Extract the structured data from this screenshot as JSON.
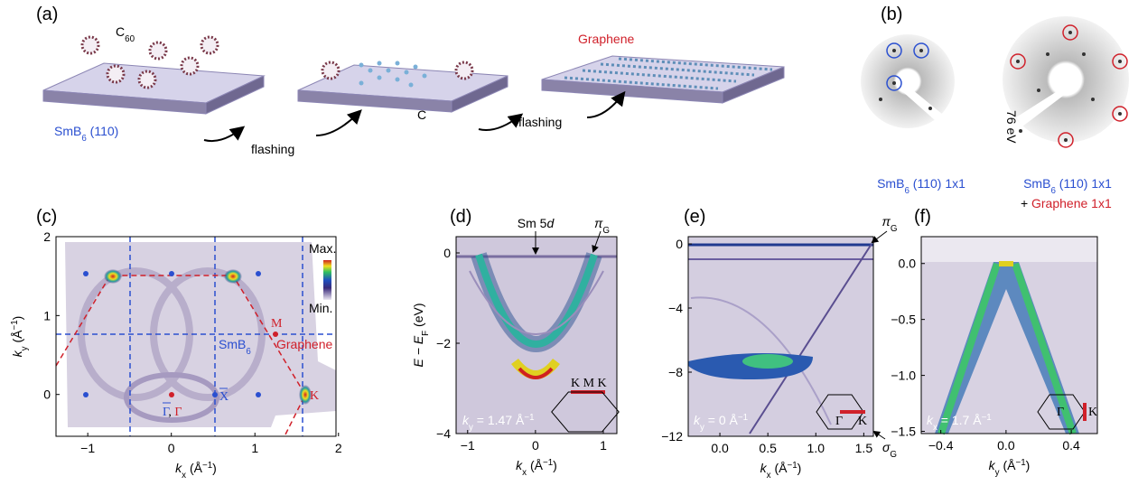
{
  "panel_a": {
    "label": "(a)",
    "molecule": [
      "C",
      "60"
    ],
    "carbon": "C",
    "substrate": [
      "SmB",
      "6",
      " (110)"
    ],
    "step_1": "flashing",
    "step_2": "flashing",
    "product": "Graphene"
  },
  "panel_b": {
    "label": "(b)",
    "energy": "76 eV",
    "left_caption": [
      "SmB",
      "6",
      " (110) 1x1"
    ],
    "right_caption": [
      "SmB",
      "6",
      " (110) 1x1"
    ],
    "plus": "+",
    "graphene_caption": "Graphene 1x1"
  },
  "panels": [
    {
      "label": "(c)",
      "xlim": [
        -1.38,
        1.97
      ],
      "ylim": [
        -0.53,
        2
      ],
      "xticks": [
        {
          "value": -1,
          "label": "−1"
        },
        0,
        1,
        2
      ],
      "yticks": [
        0,
        1,
        2
      ],
      "xlabel": [
        "k",
        "x",
        " (Å",
        "−1",
        ")"
      ],
      "ylabel": [
        "k",
        "y",
        " (Å",
        "−1",
        ")"
      ],
      "annotations": {
        "max": "Max.",
        "min": "Min.",
        "smb6": [
          "SmB",
          "6"
        ],
        "graphene": "Graphene",
        "m": "M",
        "k": "K",
        "gamma": [
          "Γ",
          ", ",
          "Γ"
        ],
        "x": "X"
      }
    },
    {
      "label": "(d)",
      "xlim": [
        -1.17,
        1.2
      ],
      "ylim": [
        -4,
        0.36
      ],
      "xticks": [
        {
          "value": -1,
          "label": "−1"
        },
        0,
        1
      ],
      "yticks": [
        {
          "value": -4,
          "label": "−4"
        },
        {
          "value": -2,
          "label": "−2"
        },
        0
      ],
      "xlabel": [
        "k",
        "x",
        " (Å",
        "−1",
        ")"
      ],
      "ylabel": [
        "E",
        " − E",
        "F",
        " (eV)"
      ],
      "annotations": {
        "sm5d": [
          "Sm 5",
          "d"
        ],
        "pi": [
          "π",
          "G"
        ],
        "cut": [
          "k",
          "y",
          " = 1.47 Å",
          "−1"
        ],
        "kmk": "K M K"
      }
    },
    {
      "label": "(e)",
      "xlim": [
        -0.33,
        1.6
      ],
      "ylim": [
        -12,
        0.45
      ],
      "xticks": [
        {
          "value": 0,
          "label": "0.0"
        },
        {
          "value": 0.5,
          "label": "0.5"
        },
        {
          "value": 1,
          "label": "1.0"
        },
        {
          "value": 1.5,
          "label": "1.5"
        }
      ],
      "yticks": [
        {
          "value": -12,
          "label": "−12"
        },
        {
          "value": -8,
          "label": "−8"
        },
        {
          "value": -4,
          "label": "−4"
        },
        0
      ],
      "xlabel": [
        "k",
        "x",
        " (Å",
        "−1",
        ")"
      ],
      "annotations": {
        "pi": [
          "π",
          "G"
        ],
        "sigma": [
          "σ",
          "G"
        ],
        "cut": [
          "k",
          "y",
          " = 0 Å",
          "−1"
        ],
        "gamma": "Γ",
        "k": "K"
      }
    },
    {
      "label": "(f)",
      "xlim": [
        -0.52,
        0.56
      ],
      "ylim": [
        -1.52,
        0.24
      ],
      "xticks": [
        {
          "value": -0.4,
          "label": "−0.4"
        },
        {
          "value": 0,
          "label": "0.0"
        },
        {
          "value": 0.4,
          "label": "0.4"
        }
      ],
      "yticks": [
        {
          "value": -1.5,
          "label": "−1.5"
        },
        {
          "value": -1,
          "label": "−1.0"
        },
        {
          "value": -0.5,
          "label": "−0.5"
        },
        {
          "value": 0,
          "label": "0.0"
        }
      ],
      "xlabel": [
        "k",
        "y",
        " (Å",
        "−1",
        ")"
      ],
      "annotations": {
        "cut": [
          "k",
          "x",
          " = 1.7 Å",
          "−1"
        ],
        "gamma": "Γ",
        "k": "K"
      }
    }
  ]
}
